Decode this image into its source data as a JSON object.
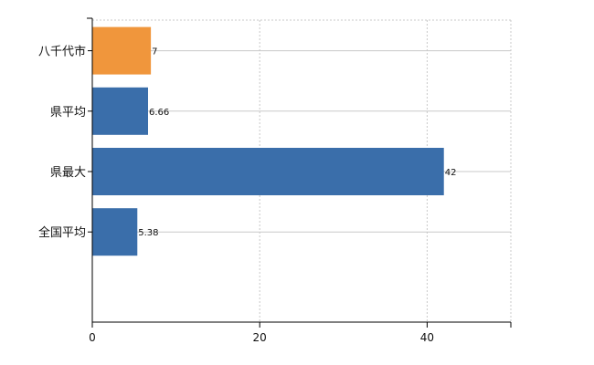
{
  "chart_data": {
    "type": "bar",
    "orientation": "horizontal",
    "categories": [
      "八千代市",
      "県平均",
      "県最大",
      "全国平均"
    ],
    "values": [
      7,
      6.66,
      42,
      5.38
    ],
    "value_labels": [
      "7",
      "6.66",
      "42",
      "5.38"
    ],
    "bar_colors": [
      "#f0963c",
      "#3a6eaa",
      "#3a6eaa",
      "#3a6eaa"
    ],
    "xlim": [
      0,
      50
    ],
    "xticks": [
      0,
      20,
      40
    ],
    "xtick_labels": [
      "0",
      "20",
      "40"
    ],
    "grid": "dotted vertical and horizontal",
    "title": "",
    "xlabel": "",
    "ylabel": ""
  }
}
